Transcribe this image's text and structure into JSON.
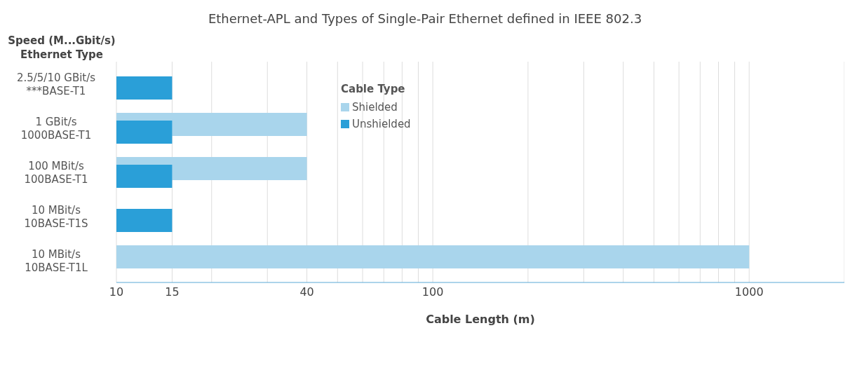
{
  "chart_data": {
    "type": "bar",
    "orientation": "horizontal",
    "title": "Ethernet-APL and Types of Single-Pair Ethernet defined in IEEE 802.3",
    "xlabel": "Cable Length (m)",
    "ylabel": "Speed (M...Gbit/s)\nEthernet Type",
    "legend_title": "Cable Type",
    "categories": [
      "2.5/5/10 GBit/s\n***BASE-T1",
      "1 GBit/s\n1000BASE-T1",
      "100 MBit/s\n100BASE-T1",
      "10 MBit/s\n10BASE-T1S",
      "10 MBit/s\n10BASE-T1L"
    ],
    "series": [
      {
        "name": "Shielded",
        "color": "#a9d5ec",
        "values": [
          null,
          40,
          40,
          null,
          1000
        ]
      },
      {
        "name": "Unshielded",
        "color": "#2a9fd8",
        "values": [
          15,
          15,
          15,
          15,
          null
        ]
      }
    ],
    "log": "x",
    "xlim": [
      10,
      2000
    ],
    "xticks": [
      10,
      15,
      {
        "value": 20,
        "label": null
      },
      {
        "value": 30,
        "label": null
      },
      40,
      {
        "value": 50,
        "label": null
      },
      {
        "value": 60,
        "label": null
      },
      {
        "value": 70,
        "label": null
      },
      {
        "value": 80,
        "label": null
      },
      {
        "value": 90,
        "label": null
      },
      100,
      {
        "value": 200,
        "label": null
      },
      {
        "value": 300,
        "label": null
      },
      {
        "value": 400,
        "label": null
      },
      {
        "value": 500,
        "label": null
      },
      {
        "value": 600,
        "label": null
      },
      {
        "value": 700,
        "label": null
      },
      {
        "value": 800,
        "label": null
      },
      {
        "value": 900,
        "label": null
      },
      1000
    ],
    "grid": "x",
    "legend": "top"
  }
}
